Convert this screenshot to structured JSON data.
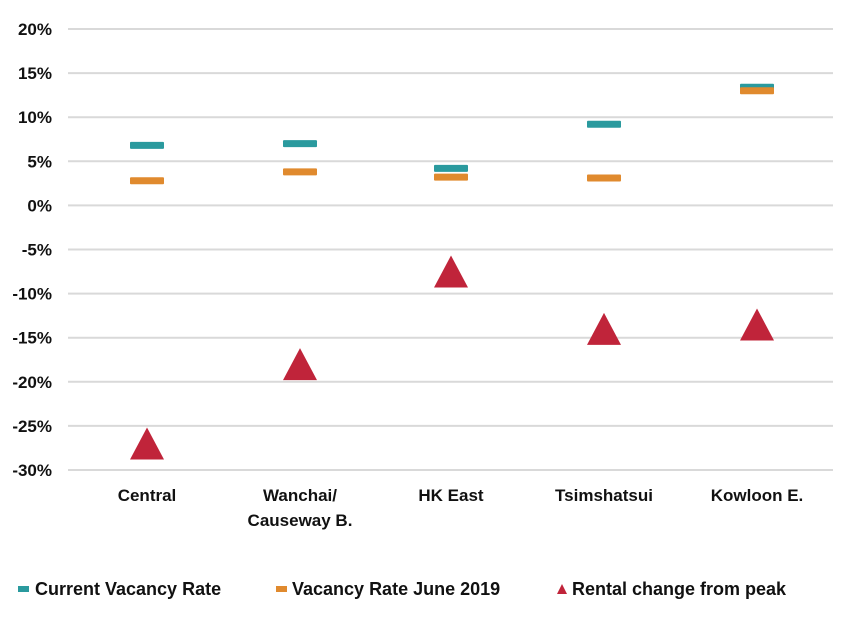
{
  "chart_data": {
    "type": "scatter",
    "categories": [
      [
        "Central"
      ],
      [
        "Wanchai/",
        "Causeway B."
      ],
      [
        "HK East"
      ],
      [
        "Tsimshatsui"
      ],
      [
        "Kowloon E."
      ]
    ],
    "series": [
      {
        "name": "Current Vacancy Rate",
        "marker": "dash",
        "color": "#2a9a9e",
        "values": [
          6.8,
          7.0,
          4.2,
          9.2,
          13.4
        ]
      },
      {
        "name": "Vacancy Rate June 2019",
        "marker": "dash",
        "color": "#e08a2e",
        "values": [
          2.8,
          3.8,
          3.2,
          3.1,
          13.0
        ]
      },
      {
        "name": "Rental change from peak",
        "marker": "triangle",
        "color": "#c0243a",
        "values": [
          -27.0,
          -18.0,
          -7.5,
          -14.0,
          -13.5
        ]
      }
    ],
    "yticks": [
      "20%",
      "15%",
      "10%",
      "5%",
      "0%",
      "-5%",
      "-10%",
      "-15%",
      "-20%",
      "-25%",
      "-30%"
    ],
    "ytick_values": [
      20,
      15,
      10,
      5,
      0,
      -5,
      -10,
      -15,
      -20,
      -25,
      -30
    ],
    "ylim": [
      -30,
      20
    ],
    "grid": true,
    "legend_position": "bottom"
  }
}
